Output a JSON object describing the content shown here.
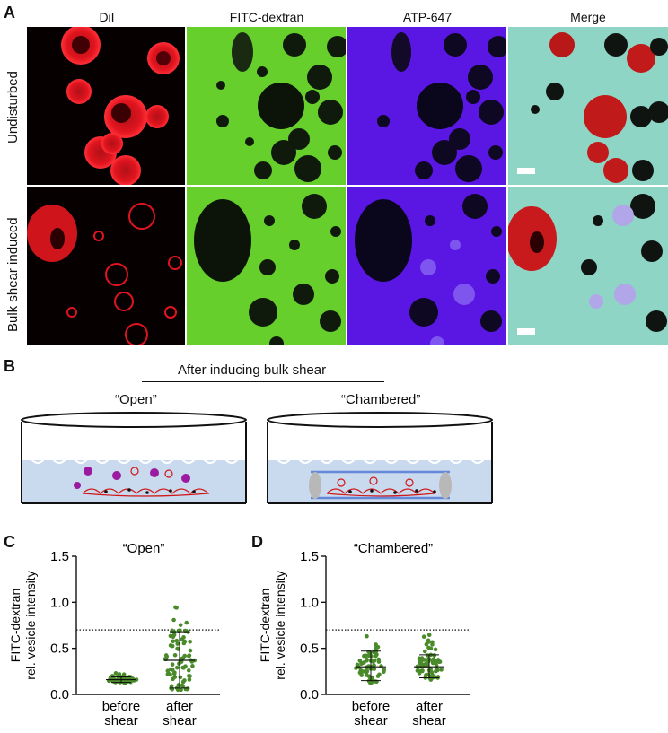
{
  "panel_a": {
    "letter": "A",
    "columns": [
      "DiI",
      "FITC-dextran",
      "ATP-647",
      "Merge"
    ],
    "rows": [
      "Undisturbed",
      "Bulk shear induced"
    ]
  },
  "panel_b": {
    "letter": "B",
    "header": "After inducing bulk shear",
    "left_label": "“Open”",
    "right_label": "“Chambered”"
  },
  "panel_c": {
    "letter": "C"
  },
  "panel_d": {
    "letter": "D"
  },
  "chart_data": [
    {
      "type": "scatter",
      "title": "“Open”",
      "ylabel_line1": "FITC-dextran",
      "ylabel_line2": "rel. vesicle intensity",
      "categories": [
        "before shear",
        "after shear"
      ],
      "ylim": [
        0,
        1.5
      ],
      "yticks": [
        "0.0",
        "0.5",
        "1.0",
        "1.5"
      ],
      "threshold": 0.7,
      "groups": [
        {
          "name": "before shear",
          "mean": 0.16,
          "sd_low": 0.13,
          "sd_high": 0.19,
          "n": 70,
          "min": 0.12,
          "max": 0.24
        },
        {
          "name": "after shear",
          "mean": 0.37,
          "sd_low": 0.07,
          "sd_high": 0.68,
          "n": 80,
          "min": 0.05,
          "max": 0.97
        }
      ],
      "color": "#4a8a2a"
    },
    {
      "type": "scatter",
      "title": "“Chambered”",
      "ylabel_line1": "FITC-dextran",
      "ylabel_line2": "rel. vesicle intensity",
      "categories": [
        "before shear",
        "after shear"
      ],
      "ylim": [
        0,
        1.5
      ],
      "yticks": [
        "0.0",
        "0.5",
        "1.0",
        "1.5"
      ],
      "threshold": 0.7,
      "groups": [
        {
          "name": "before shear",
          "mean": 0.3,
          "sd_low": 0.15,
          "sd_high": 0.47,
          "n": 60,
          "min": 0.12,
          "max": 0.82
        },
        {
          "name": "after shear",
          "mean": 0.3,
          "sd_low": 0.18,
          "sd_high": 0.43,
          "n": 70,
          "min": 0.12,
          "max": 0.73
        }
      ],
      "color": "#4a8a2a"
    }
  ],
  "colors": {
    "dii_red": "#e0141e",
    "fitc_green": "#6ad230",
    "atp_purple": "#5a16e6",
    "merge_cyan": "#8ed6c8",
    "medium_blue": "#c9d9ee",
    "dish_line": "#6688d8"
  }
}
